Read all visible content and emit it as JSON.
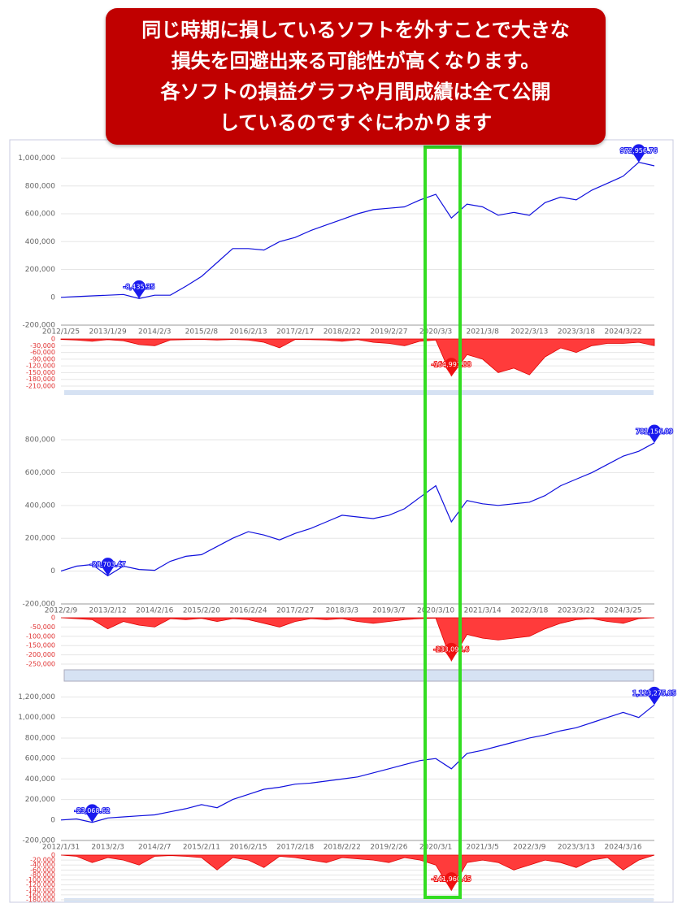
{
  "banner": {
    "lines": [
      "同じ時期に損しているソフトを外すことで大きな",
      "損失を回避出来る可能性が高くなります。",
      "各ソフトの損益グラフや月間成績は全て公開",
      "しているのですぐにわかります"
    ]
  },
  "chart_data": [
    {
      "type": "line",
      "color": "#1010dd",
      "marker_color": "#1a1aee",
      "categories": [
        "2012/1/25",
        null,
        null,
        "2013/1/29",
        null,
        null,
        "2014/2/3",
        null,
        null,
        "2015/2/8",
        null,
        null,
        "2016/2/13",
        null,
        null,
        "2017/2/17",
        null,
        null,
        "2018/2/22",
        null,
        null,
        "2019/2/27",
        null,
        null,
        "2020/3/3",
        null,
        null,
        "2021/3/8",
        null,
        null,
        "2022/3/13",
        null,
        null,
        "2023/3/18",
        null,
        null,
        "2024/3/22",
        null,
        null
      ],
      "values": [
        0,
        5000,
        10000,
        15000,
        20000,
        -8435,
        15000,
        15000,
        80000,
        150000,
        250000,
        350000,
        350000,
        340000,
        400000,
        430000,
        480000,
        520000,
        560000,
        600000,
        630000,
        640000,
        650000,
        700000,
        740000,
        570000,
        670000,
        650000,
        590000,
        610000,
        590000,
        680000,
        720000,
        700000,
        770000,
        820000,
        870000,
        970000,
        945000
      ],
      "ylim": [
        -200000,
        1050000
      ],
      "yticks": [
        {
          "value": -200000,
          "label": "-200,000"
        },
        0,
        {
          "value": 200000,
          "label": "200,000"
        },
        {
          "value": 400000,
          "label": "400,000"
        },
        {
          "value": 600000,
          "label": "600,000"
        },
        {
          "value": 800000,
          "label": "800,000"
        },
        {
          "value": 1000000,
          "label": "1,000,000"
        }
      ],
      "annotations": [
        "-8,435.35",
        "972,956.76"
      ],
      "grid": true
    },
    {
      "type": "area",
      "color": "#ff3b3b",
      "marker_color": "#ee1111",
      "values": [
        -2000,
        -5000,
        -10000,
        -3000,
        -8000,
        -25000,
        -30000,
        -5000,
        -3000,
        -2000,
        -5000,
        -2000,
        -5000,
        -15000,
        -40000,
        -2000,
        -3000,
        -5000,
        -10000,
        -3000,
        -15000,
        -20000,
        -30000,
        -10000,
        -5000,
        -165000,
        -70000,
        -90000,
        -150000,
        -130000,
        -160000,
        -80000,
        -40000,
        -60000,
        -30000,
        -20000,
        -20000,
        -15000,
        -30000
      ],
      "ylim": [
        -210000,
        0
      ],
      "yticks": [
        0,
        {
          "value": -30000,
          "label": "-30,000"
        },
        {
          "value": -60000,
          "label": "-60,000"
        },
        {
          "value": -90000,
          "label": "-90,000"
        },
        {
          "value": -120000,
          "label": "-120,000"
        },
        {
          "value": -150000,
          "label": "-150,000"
        },
        {
          "value": -180000,
          "label": "-180,000"
        },
        {
          "value": -210000,
          "label": "-210,000"
        }
      ],
      "annotations": [
        "-164,991.88"
      ],
      "grid": true
    },
    {
      "type": "line",
      "color": "#1010dd",
      "marker_color": "#1a1aee",
      "categories": [
        "2012/2/9",
        null,
        null,
        "2013/2/12",
        null,
        null,
        "2014/2/16",
        null,
        null,
        "2015/2/20",
        null,
        null,
        "2016/2/24",
        null,
        null,
        "2017/2/27",
        null,
        null,
        "2018/3/3",
        null,
        null,
        "2019/3/7",
        null,
        null,
        "2020/3/10",
        null,
        null,
        "2021/3/14",
        null,
        null,
        "2022/3/18",
        null,
        null,
        "2023/3/22",
        null,
        null,
        "2024/3/25",
        null,
        null
      ],
      "values": [
        0,
        30000,
        40000,
        -28703,
        30000,
        10000,
        5000,
        60000,
        90000,
        100000,
        150000,
        200000,
        240000,
        220000,
        190000,
        230000,
        260000,
        300000,
        340000,
        330000,
        320000,
        340000,
        380000,
        450000,
        520000,
        300000,
        430000,
        410000,
        400000,
        410000,
        420000,
        460000,
        520000,
        560000,
        600000,
        650000,
        700000,
        730000,
        781156
      ],
      "ylim": [
        -200000,
        820000
      ],
      "yticks": [
        {
          "value": -200000,
          "label": "-200,000"
        },
        0,
        {
          "value": 200000,
          "label": "200,000"
        },
        {
          "value": 400000,
          "label": "400,000"
        },
        {
          "value": 600000,
          "label": "600,000"
        },
        {
          "value": 800000,
          "label": "800,000"
        }
      ],
      "annotations": [
        "-28,703.47",
        "781,156.09"
      ],
      "grid": true
    },
    {
      "type": "area",
      "color": "#ff3b3b",
      "marker_color": "#ee1111",
      "values": [
        0,
        -5000,
        -10000,
        -60000,
        -20000,
        -40000,
        -50000,
        -5000,
        -10000,
        -3000,
        -20000,
        -5000,
        -10000,
        -30000,
        -50000,
        -20000,
        -5000,
        -10000,
        -5000,
        -20000,
        -30000,
        -20000,
        -10000,
        -5000,
        -2000,
        -233096,
        -90000,
        -110000,
        -120000,
        -110000,
        -100000,
        -60000,
        -30000,
        -10000,
        -5000,
        -20000,
        -30000,
        -5000,
        0
      ],
      "ylim": [
        -250000,
        0
      ],
      "yticks": [
        0,
        {
          "value": -50000,
          "label": "-50,000"
        },
        {
          "value": -100000,
          "label": "-100,000"
        },
        {
          "value": -150000,
          "label": "-150,000"
        },
        {
          "value": -200000,
          "label": "-200,000"
        },
        {
          "value": -250000,
          "label": "-250,000"
        }
      ],
      "annotations": [
        "-233,095.6"
      ],
      "grid": true
    },
    {
      "type": "line",
      "color": "#1010dd",
      "marker_color": "#1a1aee",
      "categories": [
        "2012/1/31",
        null,
        null,
        "2013/2/3",
        null,
        null,
        "2014/2/7",
        null,
        null,
        "2015/2/11",
        null,
        null,
        "2016/2/15",
        null,
        null,
        "2017/2/18",
        null,
        null,
        "2018/2/22",
        null,
        null,
        "2019/2/26",
        null,
        null,
        "2020/3/1",
        null,
        null,
        "2021/3/5",
        null,
        null,
        "2022/3/9",
        null,
        null,
        "2023/3/13",
        null,
        null,
        "2024/3/16",
        null,
        null
      ],
      "values": [
        0,
        10000,
        -23069,
        20000,
        30000,
        40000,
        50000,
        80000,
        110000,
        150000,
        120000,
        200000,
        250000,
        300000,
        320000,
        350000,
        360000,
        380000,
        400000,
        420000,
        460000,
        500000,
        540000,
        580000,
        600000,
        500000,
        650000,
        680000,
        720000,
        760000,
        800000,
        830000,
        870000,
        900000,
        950000,
        1000000,
        1050000,
        1000000,
        1123276
      ],
      "ylim": [
        -200000,
        1220000
      ],
      "yticks": [
        {
          "value": -200000,
          "label": "-200,000"
        },
        0,
        {
          "value": 200000,
          "label": "200,000"
        },
        {
          "value": 400000,
          "label": "400,000"
        },
        {
          "value": 600000,
          "label": "600,000"
        },
        {
          "value": 800000,
          "label": "800,000"
        },
        {
          "value": 1000000,
          "label": "1,000,000"
        },
        {
          "value": 1200000,
          "label": "1,200,000"
        }
      ],
      "annotations": [
        "-23,068.62",
        "1,123,275.85"
      ],
      "grid": true
    },
    {
      "type": "area",
      "color": "#ff3b3b",
      "marker_color": "#ee1111",
      "values": [
        0,
        -5000,
        -30000,
        -10000,
        -20000,
        -40000,
        -5000,
        -2000,
        -5000,
        -10000,
        -60000,
        -10000,
        -20000,
        -50000,
        -5000,
        -10000,
        -20000,
        -30000,
        -10000,
        -15000,
        -20000,
        -30000,
        -10000,
        -20000,
        -40000,
        -141960,
        -30000,
        -20000,
        -30000,
        -60000,
        -40000,
        -20000,
        -30000,
        -50000,
        -20000,
        -10000,
        -60000,
        -20000,
        0
      ],
      "ylim": [
        -180000,
        0
      ],
      "yticks": [
        0,
        {
          "value": -20000,
          "label": "-20,000"
        },
        {
          "value": -40000,
          "label": "-40,000"
        },
        {
          "value": -60000,
          "label": "-60,000"
        },
        {
          "value": -80000,
          "label": "-80,000"
        },
        {
          "value": -100000,
          "label": "-100,000"
        },
        {
          "value": -120000,
          "label": "-120,000"
        },
        {
          "value": -140000,
          "label": "-140,000"
        },
        {
          "value": -160000,
          "label": "-160,000"
        },
        {
          "value": -180000,
          "label": "-180,000"
        }
      ],
      "annotations": [
        "-141,960.45"
      ],
      "grid": true
    }
  ]
}
